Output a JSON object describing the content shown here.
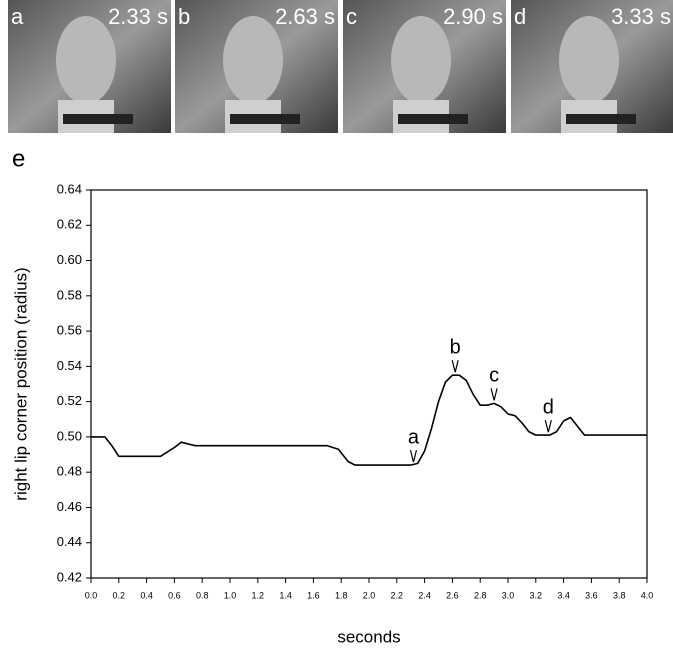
{
  "panels": [
    {
      "letter": "a",
      "time": "2.33 s"
    },
    {
      "letter": "b",
      "time": "2.63 s"
    },
    {
      "letter": "c",
      "time": "2.90 s"
    },
    {
      "letter": "d",
      "time": "3.33 s"
    }
  ],
  "chart_label": "e",
  "chart_data": {
    "type": "line",
    "xlabel": "seconds",
    "ylabel": "right lip corner position (radius)",
    "xlim": [
      0,
      4
    ],
    "ylim": [
      0.42,
      0.64
    ],
    "xticks": [
      {
        "value": 0,
        "label": "0.0"
      },
      0.2,
      0.4,
      0.6,
      0.8,
      {
        "value": 1,
        "label": "1.0"
      },
      1.2,
      1.4,
      1.6,
      1.8,
      {
        "value": 2,
        "label": "2.0"
      },
      2.2,
      2.4,
      2.6,
      2.8,
      {
        "value": 3,
        "label": "3.0"
      },
      3.2,
      3.4,
      3.6,
      3.8,
      {
        "value": 4,
        "label": "4.0"
      }
    ],
    "yticks": [
      0.42,
      0.44,
      0.46,
      0.48,
      {
        "value": 0.5,
        "label": "0.50"
      },
      0.52,
      0.54,
      0.56,
      0.58,
      {
        "value": 0.6,
        "label": "0.60"
      },
      0.62,
      0.64
    ],
    "color": "#000000",
    "x": [
      0,
      0.1,
      0.15,
      0.2,
      0.5,
      0.6,
      0.65,
      0.7,
      0.75,
      1.0,
      1.7,
      1.78,
      1.85,
      1.9,
      2.3,
      2.35,
      2.4,
      2.45,
      2.5,
      2.55,
      2.6,
      2.65,
      2.7,
      2.75,
      2.8,
      2.85,
      2.9,
      2.95,
      3.0,
      3.05,
      3.1,
      3.15,
      3.2,
      3.3,
      3.35,
      3.4,
      3.45,
      3.5,
      3.55,
      3.6,
      4.0
    ],
    "values": [
      0.5,
      0.5,
      0.495,
      0.489,
      0.489,
      0.494,
      0.497,
      0.496,
      0.495,
      0.495,
      0.495,
      0.493,
      0.486,
      0.484,
      0.484,
      0.485,
      0.492,
      0.505,
      0.52,
      0.531,
      0.535,
      0.535,
      0.532,
      0.524,
      0.518,
      0.518,
      0.519,
      0.517,
      0.513,
      0.512,
      0.508,
      0.503,
      0.501,
      0.501,
      0.503,
      0.509,
      0.511,
      0.506,
      0.501,
      0.501,
      0.501
    ],
    "annotations": [
      {
        "text": "a",
        "x": 2.32,
        "y": 0.484
      },
      {
        "text": "b",
        "x": 2.62,
        "y": 0.535
      },
      {
        "text": "c",
        "x": 2.9,
        "y": 0.519
      },
      {
        "text": "d",
        "x": 3.29,
        "y": 0.501
      }
    ]
  }
}
